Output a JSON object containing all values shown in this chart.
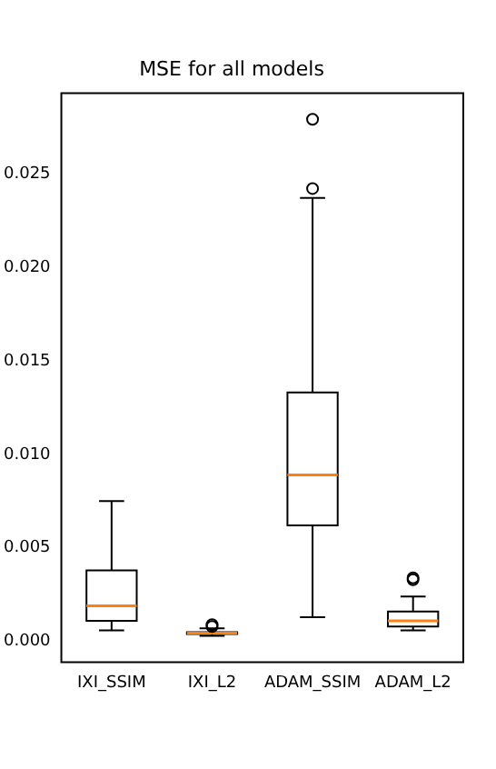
{
  "chart_data": {
    "type": "box",
    "title": "MSE for all models",
    "categories": [
      "IXI_SSIM",
      "IXI_L2",
      "ADAM_SSIM",
      "ADAM_L2"
    ],
    "boxes": [
      {
        "low": 0.0006,
        "q1": 0.0011,
        "median": 0.0019,
        "q3": 0.0038,
        "high": 0.0075
      },
      {
        "low": 0.0003,
        "q1": 0.0004,
        "median": 0.00045,
        "q3": 0.0005,
        "high": 0.0007,
        "outliers": [
          0.0008,
          0.0009
        ]
      },
      {
        "low": 0.0013,
        "q1": 0.0062,
        "median": 0.0089,
        "q3": 0.0133,
        "high": 0.0237,
        "outliers": [
          0.0242,
          0.0279
        ]
      },
      {
        "low": 0.0006,
        "q1": 0.0008,
        "median": 0.0011,
        "q3": 0.0016,
        "high": 0.0024,
        "outliers": [
          0.0033,
          0.0034
        ]
      }
    ],
    "color": "#000000",
    "ylim": [
      -0.0011,
      0.0293
    ],
    "yticks": [
      {
        "value": 0,
        "label": "0.000"
      },
      {
        "value": 0.005,
        "label": "0.005"
      },
      {
        "value": 0.01,
        "label": "0.010"
      },
      {
        "value": 0.015,
        "label": "0.015"
      },
      {
        "value": 0.02,
        "label": "0.020"
      },
      {
        "value": 0.025,
        "label": "0.025"
      }
    ],
    "grid": false,
    "legend": false
  }
}
